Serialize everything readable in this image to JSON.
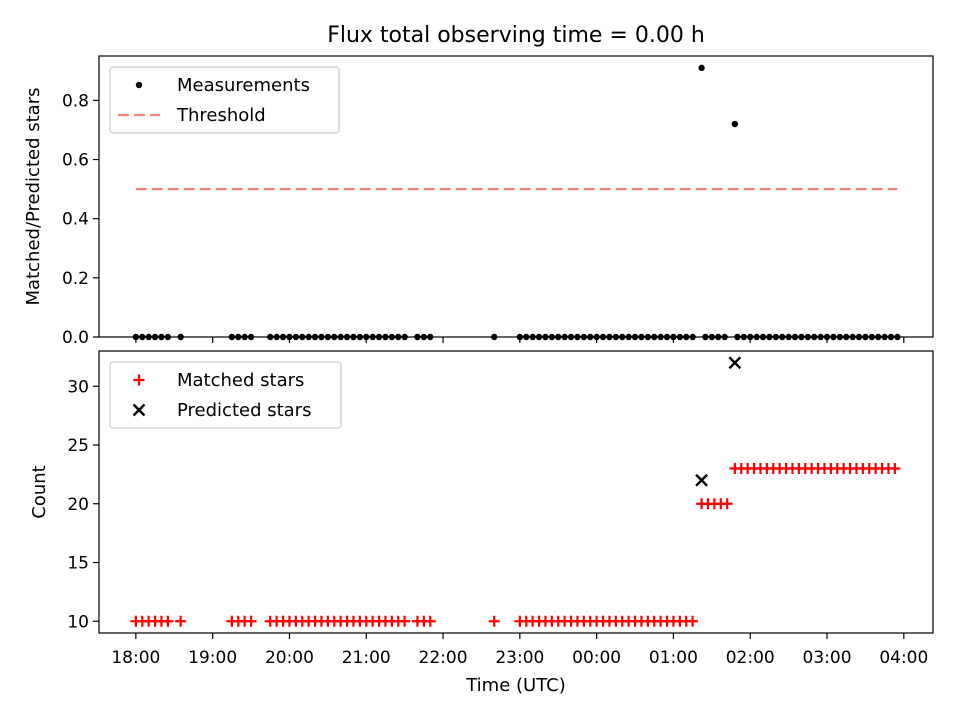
{
  "chart_data": [
    {
      "type": "scatter",
      "title": "Flux total observing time = 0.00 h",
      "ylabel": "Matched/Predicted stars",
      "xlabel": "",
      "ylim": [
        0,
        0.95
      ],
      "yticks": [
        "0.0",
        "0.2",
        "0.4",
        "0.6",
        "0.8"
      ],
      "ytick_values": [
        0,
        0.2,
        0.4,
        0.6,
        0.8
      ],
      "legend_position": "top-left",
      "series": [
        {
          "name": "Measurements",
          "marker": "dot",
          "color": "#000000",
          "points": [
            {
              "x": "18:00",
              "y": 0
            },
            {
              "x": "18:05",
              "y": 0
            },
            {
              "x": "18:10",
              "y": 0
            },
            {
              "x": "18:15",
              "y": 0
            },
            {
              "x": "18:20",
              "y": 0
            },
            {
              "x": "18:25",
              "y": 0
            },
            {
              "x": "18:35",
              "y": 0
            },
            {
              "x": "19:15",
              "y": 0
            },
            {
              "x": "19:20",
              "y": 0
            },
            {
              "x": "19:25",
              "y": 0
            },
            {
              "x": "19:30",
              "y": 0
            },
            {
              "x": "19:45",
              "y": 0
            },
            {
              "x": "19:50",
              "y": 0
            },
            {
              "x": "19:55",
              "y": 0
            },
            {
              "x": "20:00",
              "y": 0
            },
            {
              "x": "20:05",
              "y": 0
            },
            {
              "x": "20:10",
              "y": 0
            },
            {
              "x": "20:15",
              "y": 0
            },
            {
              "x": "20:20",
              "y": 0
            },
            {
              "x": "20:25",
              "y": 0
            },
            {
              "x": "20:30",
              "y": 0
            },
            {
              "x": "20:35",
              "y": 0
            },
            {
              "x": "20:40",
              "y": 0
            },
            {
              "x": "20:45",
              "y": 0
            },
            {
              "x": "20:50",
              "y": 0
            },
            {
              "x": "20:55",
              "y": 0
            },
            {
              "x": "21:00",
              "y": 0
            },
            {
              "x": "21:05",
              "y": 0
            },
            {
              "x": "21:10",
              "y": 0
            },
            {
              "x": "21:15",
              "y": 0
            },
            {
              "x": "21:20",
              "y": 0
            },
            {
              "x": "21:25",
              "y": 0
            },
            {
              "x": "21:30",
              "y": 0
            },
            {
              "x": "21:40",
              "y": 0
            },
            {
              "x": "21:45",
              "y": 0
            },
            {
              "x": "21:50",
              "y": 0
            },
            {
              "x": "22:40",
              "y": 0
            },
            {
              "x": "23:00",
              "y": 0
            },
            {
              "x": "23:05",
              "y": 0
            },
            {
              "x": "23:10",
              "y": 0
            },
            {
              "x": "23:15",
              "y": 0
            },
            {
              "x": "23:20",
              "y": 0
            },
            {
              "x": "23:25",
              "y": 0
            },
            {
              "x": "23:30",
              "y": 0
            },
            {
              "x": "23:35",
              "y": 0
            },
            {
              "x": "23:40",
              "y": 0
            },
            {
              "x": "23:45",
              "y": 0
            },
            {
              "x": "23:50",
              "y": 0
            },
            {
              "x": "23:55",
              "y": 0
            },
            {
              "x": "00:00",
              "y": 0
            },
            {
              "x": "00:05",
              "y": 0
            },
            {
              "x": "00:10",
              "y": 0
            },
            {
              "x": "00:15",
              "y": 0
            },
            {
              "x": "00:20",
              "y": 0
            },
            {
              "x": "00:25",
              "y": 0
            },
            {
              "x": "00:30",
              "y": 0
            },
            {
              "x": "00:35",
              "y": 0
            },
            {
              "x": "00:40",
              "y": 0
            },
            {
              "x": "00:45",
              "y": 0
            },
            {
              "x": "00:50",
              "y": 0
            },
            {
              "x": "00:55",
              "y": 0
            },
            {
              "x": "01:00",
              "y": 0
            },
            {
              "x": "01:05",
              "y": 0
            },
            {
              "x": "01:10",
              "y": 0
            },
            {
              "x": "01:15",
              "y": 0
            },
            {
              "x": "01:22",
              "y": 0.91
            },
            {
              "x": "01:25",
              "y": 0
            },
            {
              "x": "01:30",
              "y": 0
            },
            {
              "x": "01:35",
              "y": 0
            },
            {
              "x": "01:40",
              "y": 0
            },
            {
              "x": "01:48",
              "y": 0.72
            },
            {
              "x": "01:50",
              "y": 0
            },
            {
              "x": "01:55",
              "y": 0
            },
            {
              "x": "02:00",
              "y": 0
            },
            {
              "x": "02:05",
              "y": 0
            },
            {
              "x": "02:10",
              "y": 0
            },
            {
              "x": "02:15",
              "y": 0
            },
            {
              "x": "02:20",
              "y": 0
            },
            {
              "x": "02:25",
              "y": 0
            },
            {
              "x": "02:30",
              "y": 0
            },
            {
              "x": "02:35",
              "y": 0
            },
            {
              "x": "02:40",
              "y": 0
            },
            {
              "x": "02:45",
              "y": 0
            },
            {
              "x": "02:50",
              "y": 0
            },
            {
              "x": "02:55",
              "y": 0
            },
            {
              "x": "03:00",
              "y": 0
            },
            {
              "x": "03:05",
              "y": 0
            },
            {
              "x": "03:10",
              "y": 0
            },
            {
              "x": "03:15",
              "y": 0
            },
            {
              "x": "03:20",
              "y": 0
            },
            {
              "x": "03:25",
              "y": 0
            },
            {
              "x": "03:30",
              "y": 0
            },
            {
              "x": "03:35",
              "y": 0
            },
            {
              "x": "03:40",
              "y": 0
            },
            {
              "x": "03:45",
              "y": 0
            },
            {
              "x": "03:50",
              "y": 0
            },
            {
              "x": "03:55",
              "y": 0
            }
          ]
        },
        {
          "name": "Threshold",
          "marker": "dashed-line",
          "color": "#ff7f7f",
          "points": [
            {
              "x": "18:00",
              "y": 0.5
            },
            {
              "x": "03:55",
              "y": 0.5
            }
          ]
        }
      ]
    },
    {
      "type": "scatter",
      "title": "",
      "ylabel": "Count",
      "xlabel": "Time (UTC)",
      "ylim": [
        9,
        33
      ],
      "yticks": [
        "10",
        "15",
        "20",
        "25",
        "30"
      ],
      "ytick_values": [
        10,
        15,
        20,
        25,
        30
      ],
      "xticks": [
        "18:00",
        "19:00",
        "20:00",
        "21:00",
        "22:00",
        "23:00",
        "00:00",
        "01:00",
        "02:00",
        "03:00",
        "04:00"
      ],
      "legend_position": "top-left",
      "series": [
        {
          "name": "Matched stars",
          "marker": "plus",
          "color": "#ff0000",
          "points": [
            {
              "x": "18:00",
              "y": 10
            },
            {
              "x": "18:05",
              "y": 10
            },
            {
              "x": "18:10",
              "y": 10
            },
            {
              "x": "18:15",
              "y": 10
            },
            {
              "x": "18:20",
              "y": 10
            },
            {
              "x": "18:25",
              "y": 10
            },
            {
              "x": "18:35",
              "y": 10
            },
            {
              "x": "19:15",
              "y": 10
            },
            {
              "x": "19:20",
              "y": 10
            },
            {
              "x": "19:25",
              "y": 10
            },
            {
              "x": "19:30",
              "y": 10
            },
            {
              "x": "19:45",
              "y": 10
            },
            {
              "x": "19:50",
              "y": 10
            },
            {
              "x": "19:55",
              "y": 10
            },
            {
              "x": "20:00",
              "y": 10
            },
            {
              "x": "20:05",
              "y": 10
            },
            {
              "x": "20:10",
              "y": 10
            },
            {
              "x": "20:15",
              "y": 10
            },
            {
              "x": "20:20",
              "y": 10
            },
            {
              "x": "20:25",
              "y": 10
            },
            {
              "x": "20:30",
              "y": 10
            },
            {
              "x": "20:35",
              "y": 10
            },
            {
              "x": "20:40",
              "y": 10
            },
            {
              "x": "20:45",
              "y": 10
            },
            {
              "x": "20:50",
              "y": 10
            },
            {
              "x": "20:55",
              "y": 10
            },
            {
              "x": "21:00",
              "y": 10
            },
            {
              "x": "21:05",
              "y": 10
            },
            {
              "x": "21:10",
              "y": 10
            },
            {
              "x": "21:15",
              "y": 10
            },
            {
              "x": "21:20",
              "y": 10
            },
            {
              "x": "21:25",
              "y": 10
            },
            {
              "x": "21:30",
              "y": 10
            },
            {
              "x": "21:40",
              "y": 10
            },
            {
              "x": "21:45",
              "y": 10
            },
            {
              "x": "21:50",
              "y": 10
            },
            {
              "x": "22:40",
              "y": 10
            },
            {
              "x": "23:00",
              "y": 10
            },
            {
              "x": "23:05",
              "y": 10
            },
            {
              "x": "23:10",
              "y": 10
            },
            {
              "x": "23:15",
              "y": 10
            },
            {
              "x": "23:20",
              "y": 10
            },
            {
              "x": "23:25",
              "y": 10
            },
            {
              "x": "23:30",
              "y": 10
            },
            {
              "x": "23:35",
              "y": 10
            },
            {
              "x": "23:40",
              "y": 10
            },
            {
              "x": "23:45",
              "y": 10
            },
            {
              "x": "23:50",
              "y": 10
            },
            {
              "x": "23:55",
              "y": 10
            },
            {
              "x": "00:00",
              "y": 10
            },
            {
              "x": "00:05",
              "y": 10
            },
            {
              "x": "00:10",
              "y": 10
            },
            {
              "x": "00:15",
              "y": 10
            },
            {
              "x": "00:20",
              "y": 10
            },
            {
              "x": "00:25",
              "y": 10
            },
            {
              "x": "00:30",
              "y": 10
            },
            {
              "x": "00:35",
              "y": 10
            },
            {
              "x": "00:40",
              "y": 10
            },
            {
              "x": "00:45",
              "y": 10
            },
            {
              "x": "00:50",
              "y": 10
            },
            {
              "x": "00:55",
              "y": 10
            },
            {
              "x": "01:00",
              "y": 10
            },
            {
              "x": "01:05",
              "y": 10
            },
            {
              "x": "01:10",
              "y": 10
            },
            {
              "x": "01:15",
              "y": 10
            },
            {
              "x": "01:22",
              "y": 20
            },
            {
              "x": "01:27",
              "y": 20
            },
            {
              "x": "01:32",
              "y": 20
            },
            {
              "x": "01:37",
              "y": 20
            },
            {
              "x": "01:42",
              "y": 20
            },
            {
              "x": "01:48",
              "y": 23
            },
            {
              "x": "01:53",
              "y": 23
            },
            {
              "x": "01:58",
              "y": 23
            },
            {
              "x": "02:03",
              "y": 23
            },
            {
              "x": "02:08",
              "y": 23
            },
            {
              "x": "02:13",
              "y": 23
            },
            {
              "x": "02:18",
              "y": 23
            },
            {
              "x": "02:23",
              "y": 23
            },
            {
              "x": "02:28",
              "y": 23
            },
            {
              "x": "02:33",
              "y": 23
            },
            {
              "x": "02:38",
              "y": 23
            },
            {
              "x": "02:43",
              "y": 23
            },
            {
              "x": "02:48",
              "y": 23
            },
            {
              "x": "02:53",
              "y": 23
            },
            {
              "x": "02:58",
              "y": 23
            },
            {
              "x": "03:03",
              "y": 23
            },
            {
              "x": "03:08",
              "y": 23
            },
            {
              "x": "03:13",
              "y": 23
            },
            {
              "x": "03:18",
              "y": 23
            },
            {
              "x": "03:23",
              "y": 23
            },
            {
              "x": "03:28",
              "y": 23
            },
            {
              "x": "03:33",
              "y": 23
            },
            {
              "x": "03:38",
              "y": 23
            },
            {
              "x": "03:43",
              "y": 23
            },
            {
              "x": "03:48",
              "y": 23
            },
            {
              "x": "03:53",
              "y": 23
            }
          ]
        },
        {
          "name": "Predicted stars",
          "marker": "x",
          "color": "#000000",
          "points": [
            {
              "x": "01:22",
              "y": 22
            },
            {
              "x": "01:48",
              "y": 32
            }
          ]
        }
      ]
    }
  ]
}
